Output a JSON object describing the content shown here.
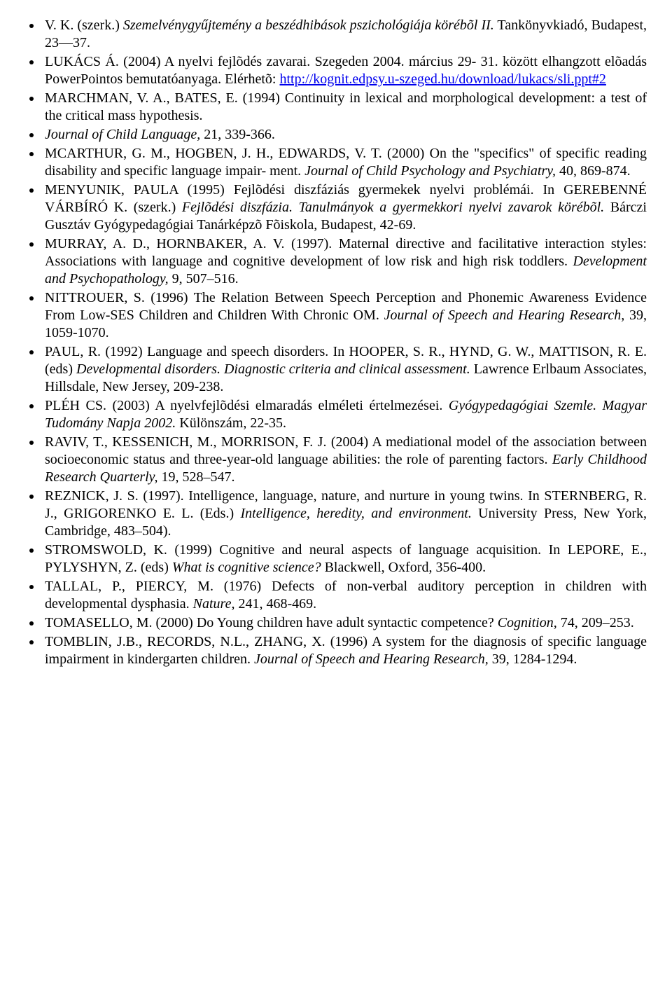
{
  "references": [
    {
      "segments": [
        {
          "text": "V. K. (szerk.) ",
          "italic": false
        },
        {
          "text": "Szemelvénygyűjtemény a beszédhibások pszichológiája körébõl II.",
          "italic": true
        },
        {
          "text": " Tankönyvkiadó, Budapest, 23—37.",
          "italic": false
        }
      ]
    },
    {
      "segments": [
        {
          "text": "LUKÁCS Á. (2004) A nyelvi fejlõdés zavarai. Szegeden 2004. március 29- 31. között elhangzott elõadás PowerPointos bemutatóanyaga. Elérhetõ: ",
          "italic": false
        },
        {
          "text": "http://kognit.edpsy.u-szeged.hu/download/lukacs/sli.ppt#2",
          "italic": false,
          "link": true
        }
      ]
    },
    {
      "segments": [
        {
          "text": "MARCHMAN, V. A., BATES, E. (1994) Continuity in lexical and morphological development: a test of the critical mass hypothesis.",
          "italic": false
        }
      ]
    },
    {
      "segments": [
        {
          "text": "Journal of Child Language,",
          "italic": true
        },
        {
          "text": " 21, 339-366.",
          "italic": false
        }
      ]
    },
    {
      "segments": [
        {
          "text": "MCARTHUR, G. M., HOGBEN, J. H., EDWARDS, V. T. (2000) On the \"specifics\" of specific reading disability and specific language impair- ment. ",
          "italic": false
        },
        {
          "text": "Journal of Child Psychology and Psychiatry,",
          "italic": true
        },
        {
          "text": " 40, 869-874.",
          "italic": false
        }
      ]
    },
    {
      "segments": [
        {
          "text": "MENYUNIK, PAULA (1995) Fejlõdési diszfáziás gyermekek nyelvi problémái. In GEREBENNÉ VÁRBÍRÓ K. (szerk.) ",
          "italic": false
        },
        {
          "text": "Fejlõdési diszfázia. Tanulmányok a gyermekkori nyelvi zavarok körébõl.",
          "italic": true
        },
        {
          "text": " Bárczi Gusztáv Gyógypedagógiai Tanárképzõ Fõiskola, Budapest, 42-69.",
          "italic": false
        }
      ]
    },
    {
      "segments": [
        {
          "text": "MURRAY, A. D., HORNBAKER, A. V. (1997). Maternal directive and facilitative interaction styles: Associations with language and cognitive development of low risk and high risk toddlers. ",
          "italic": false
        },
        {
          "text": "Development and Psychopathology,",
          "italic": true
        },
        {
          "text": " 9, 507–516.",
          "italic": false
        }
      ]
    },
    {
      "segments": [
        {
          "text": "NITTROUER, S. (1996) The Relation Between Speech Perception and Phonemic Awareness Evidence From Low-SES Children and Children With Chronic OM. ",
          "italic": false
        },
        {
          "text": "Journal of Speech and Hearing Research,",
          "italic": true
        },
        {
          "text": " 39, 1059-1070.",
          "italic": false
        }
      ]
    },
    {
      "segments": [
        {
          "text": "PAUL, R. (1992) Language and speech disorders. In HOOPER, S. R., HYND, G. W., MATTISON, R. E. (eds) ",
          "italic": false
        },
        {
          "text": "Developmental disorders. Diagnostic criteria and clinical assessment.",
          "italic": true
        },
        {
          "text": " Lawrence Erlbaum Associates, Hillsdale, New Jersey, 209-238.",
          "italic": false
        }
      ]
    },
    {
      "segments": [
        {
          "text": "PLÉH CS. (2003) A nyelvfejlõdési elmaradás elméleti értelmezései. ",
          "italic": false
        },
        {
          "text": "Gyógypedagógiai Szemle. Magyar Tudomány Napja 2002.",
          "italic": true
        },
        {
          "text": " Különszám, 22-35.",
          "italic": false
        }
      ]
    },
    {
      "segments": [
        {
          "text": "RAVIV, T., KESSENICH, M., MORRISON, F. J. (2004) A mediational model of the association between socioeconomic status and three-year-old language abilities: the role of parenting factors. ",
          "italic": false
        },
        {
          "text": "Early Childhood Research Quarterly,",
          "italic": true
        },
        {
          "text": " 19, 528–547.",
          "italic": false
        }
      ]
    },
    {
      "segments": [
        {
          "text": "REZNICK, J. S. (1997). Intelligence, language, nature, and nurture in young twins. In STERNBERG, R. J., GRIGORENKO E. L. (Eds.) ",
          "italic": false
        },
        {
          "text": "Intelligence, heredity, and environment.",
          "italic": true
        },
        {
          "text": " University Press, New York, Cambridge, 483–504).",
          "italic": false
        }
      ]
    },
    {
      "segments": [
        {
          "text": "STROMSWOLD, K. (1999) Cognitive and neural aspects of language acquisition. In LEPORE, E., PYLYSHYN, Z. (eds) ",
          "italic": false
        },
        {
          "text": "What is cognitive science?",
          "italic": true
        },
        {
          "text": " Blackwell, Oxford, 356-400.",
          "italic": false
        }
      ]
    },
    {
      "segments": [
        {
          "text": "TALLAL, P., PIERCY, M. (1976) Defects of non-verbal auditory perception in children with developmental dysphasia. ",
          "italic": false
        },
        {
          "text": "Nature,",
          "italic": true
        },
        {
          "text": " 241, 468-469.",
          "italic": false
        }
      ]
    },
    {
      "segments": [
        {
          "text": "TOMASELLO, M. (2000) Do Young children have adult syntactic competence? ",
          "italic": false
        },
        {
          "text": "Cognition,",
          "italic": true
        },
        {
          "text": " 74, 209–253.",
          "italic": false
        }
      ]
    },
    {
      "segments": [
        {
          "text": "TOMBLIN, J.B., RECORDS, N.L., ZHANG, X. (1996) A system for the diagnosis of specific language impairment in kindergarten children. ",
          "italic": false
        },
        {
          "text": "Journal of Speech and Hearing Research,",
          "italic": true
        },
        {
          "text": " 39, 1284-1294.",
          "italic": false
        }
      ]
    }
  ]
}
